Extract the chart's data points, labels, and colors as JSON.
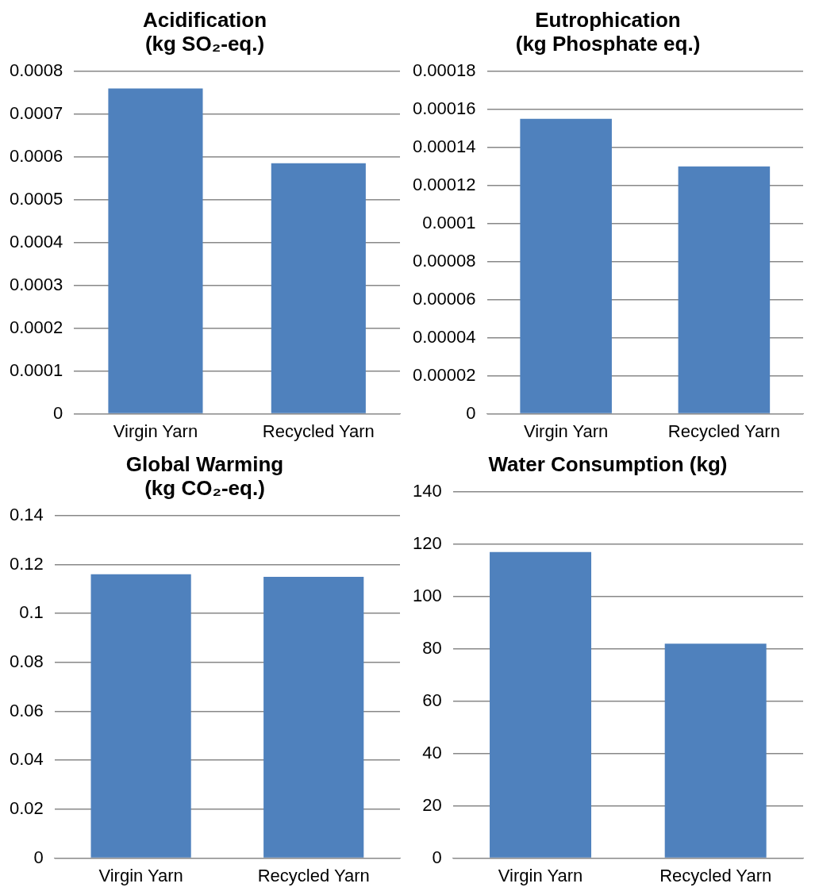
{
  "chart_data": [
    {
      "type": "bar",
      "title": "Acidification\n(kg SO₂-eq.)",
      "categories": [
        "Virgin Yarn",
        "Recycled Yarn"
      ],
      "values": [
        0.00076,
        0.000585
      ],
      "color": "#4f81bd",
      "ylim": [
        0,
        0.0008
      ],
      "yticks": [
        0,
        0.0001,
        0.0002,
        0.0003,
        0.0004,
        0.0005,
        0.0006,
        0.0007,
        0.0008
      ],
      "grid": "y"
    },
    {
      "type": "bar",
      "title": "Eutrophication\n(kg Phosphate eq.)",
      "categories": [
        "Virgin Yarn",
        "Recycled Yarn"
      ],
      "values": [
        0.000155,
        0.00013
      ],
      "color": "#4f81bd",
      "ylim": [
        0,
        0.00018
      ],
      "yticks": [
        0,
        {
          "value": 2e-05,
          "label": "0.00002"
        },
        {
          "value": 4e-05,
          "label": "0.00004"
        },
        {
          "value": 6e-05,
          "label": "0.00006"
        },
        {
          "value": 8e-05,
          "label": "0.00008"
        },
        0.0001,
        0.00012,
        0.00014,
        0.00016,
        0.00018
      ],
      "grid": "y"
    },
    {
      "type": "bar",
      "title": "Global Warming\n(kg CO₂-eq.)",
      "categories": [
        "Virgin Yarn",
        "Recycled Yarn"
      ],
      "values": [
        0.116,
        0.115
      ],
      "color": "#4f81bd",
      "ylim": [
        0,
        0.14
      ],
      "yticks": [
        0,
        0.02,
        0.04,
        0.06,
        0.08,
        0.1,
        0.12,
        0.14
      ],
      "grid": "y"
    },
    {
      "type": "bar",
      "title": "Water Consumption (kg)",
      "categories": [
        "Virgin Yarn",
        "Recycled Yarn"
      ],
      "values": [
        117,
        82
      ],
      "color": "#4f81bd",
      "ylim": [
        0,
        140
      ],
      "yticks": [
        0,
        20,
        40,
        60,
        80,
        100,
        120,
        140
      ],
      "grid": "y"
    }
  ]
}
